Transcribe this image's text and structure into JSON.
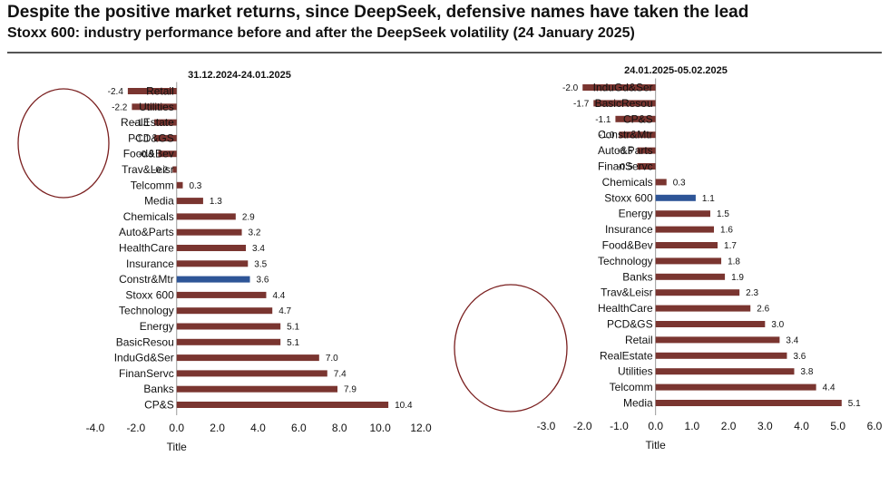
{
  "header": {
    "title": "Despite the positive market returns, since DeepSeek, defensive names have taken the lead",
    "subtitle": "Stoxx 600: industry performance before and after the DeepSeek volatility (24  January 2025)"
  },
  "colors": {
    "bar": "#7a3530",
    "highlight": "#2e5597",
    "circle": "#7a1f1f"
  },
  "chart_data": [
    {
      "type": "bar",
      "orientation": "horizontal",
      "title": "31.12.2024-24.01.2025",
      "xlabel": "Title",
      "xlim": [
        -4,
        12
      ],
      "xticks": [
        "-4.0",
        "-2.0",
        "0.0",
        "2.0",
        "4.0",
        "6.0",
        "8.0",
        "10.0",
        "12.0"
      ],
      "highlight": "Constr&Mtr",
      "circled": [
        "Retail",
        "Utilities",
        "RealEstate",
        "PCD&GS",
        "Food&Bev",
        "Trav&Leisr",
        "Telcomm"
      ],
      "categories": [
        "Retail",
        "Utilities",
        "RealEstate",
        "PCD&GS",
        "Food&Bev",
        "Trav&Leisr",
        "Telcomm",
        "Media",
        "Chemicals",
        "Auto&Parts",
        "HealthCare",
        "Insurance",
        "Constr&Mtr",
        "Stoxx 600",
        "Technology",
        "Energy",
        "BasicResou",
        "InduGd&Ser",
        "FinanServc",
        "Banks",
        "CP&S"
      ],
      "values": [
        -2.4,
        -2.2,
        -1.1,
        -1.1,
        -0.9,
        -0.2,
        0.3,
        1.3,
        2.9,
        3.2,
        3.4,
        3.5,
        3.6,
        4.4,
        4.7,
        5.1,
        5.1,
        7.0,
        7.4,
        7.9,
        10.4
      ],
      "labels": [
        "-2.4",
        "-2.2",
        "-1.1",
        "-1.1",
        "-0.9",
        "-0.2",
        "0.3",
        "1.3",
        "2.9",
        "3.2",
        "3.4",
        "3.5",
        "3.6",
        "4.4",
        "4.7",
        "5.1",
        "5.1",
        "7.0",
        "7.4",
        "7.9",
        "10.4"
      ]
    },
    {
      "type": "bar",
      "orientation": "horizontal",
      "title": "24.01.2025-05.02.2025",
      "xlabel": "Title",
      "xlim": [
        -3,
        6
      ],
      "xticks": [
        "-3.0",
        "-2.0",
        "-1.0",
        "0.0",
        "1.0",
        "2.0",
        "3.0",
        "4.0",
        "5.0",
        "6.0"
      ],
      "highlight": "Stoxx 600",
      "circled": [
        "Trav&Leisr",
        "HealthCare",
        "PCD&GS",
        "Retail",
        "RealEstate",
        "Utilities",
        "Telcomm",
        "Media"
      ],
      "categories": [
        "InduGd&Ser",
        "BasicResou",
        "CP&S",
        "Constr&Mtr",
        "Auto&Parts",
        "FinanServc",
        "Chemicals",
        "Stoxx 600",
        "Energy",
        "Insurance",
        "Food&Bev",
        "Technology",
        "Banks",
        "Trav&Leisr",
        "HealthCare",
        "PCD&GS",
        "Retail",
        "RealEstate",
        "Utilities",
        "Telcomm",
        "Media"
      ],
      "values": [
        -2.0,
        -1.7,
        -1.1,
        -1.0,
        -0.5,
        -0.5,
        0.3,
        1.1,
        1.5,
        1.6,
        1.7,
        1.8,
        1.9,
        2.3,
        2.6,
        3.0,
        3.4,
        3.6,
        3.8,
        4.4,
        5.1
      ],
      "labels": [
        "-2.0",
        "-1.7",
        "-1.1",
        "-1.0",
        "-0.5",
        "-0.5",
        "0.3",
        "1.1",
        "1.5",
        "1.6",
        "1.7",
        "1.8",
        "1.9",
        "2.3",
        "2.6",
        "3.0",
        "3.4",
        "3.6",
        "3.8",
        "4.4",
        "5.1"
      ]
    }
  ]
}
